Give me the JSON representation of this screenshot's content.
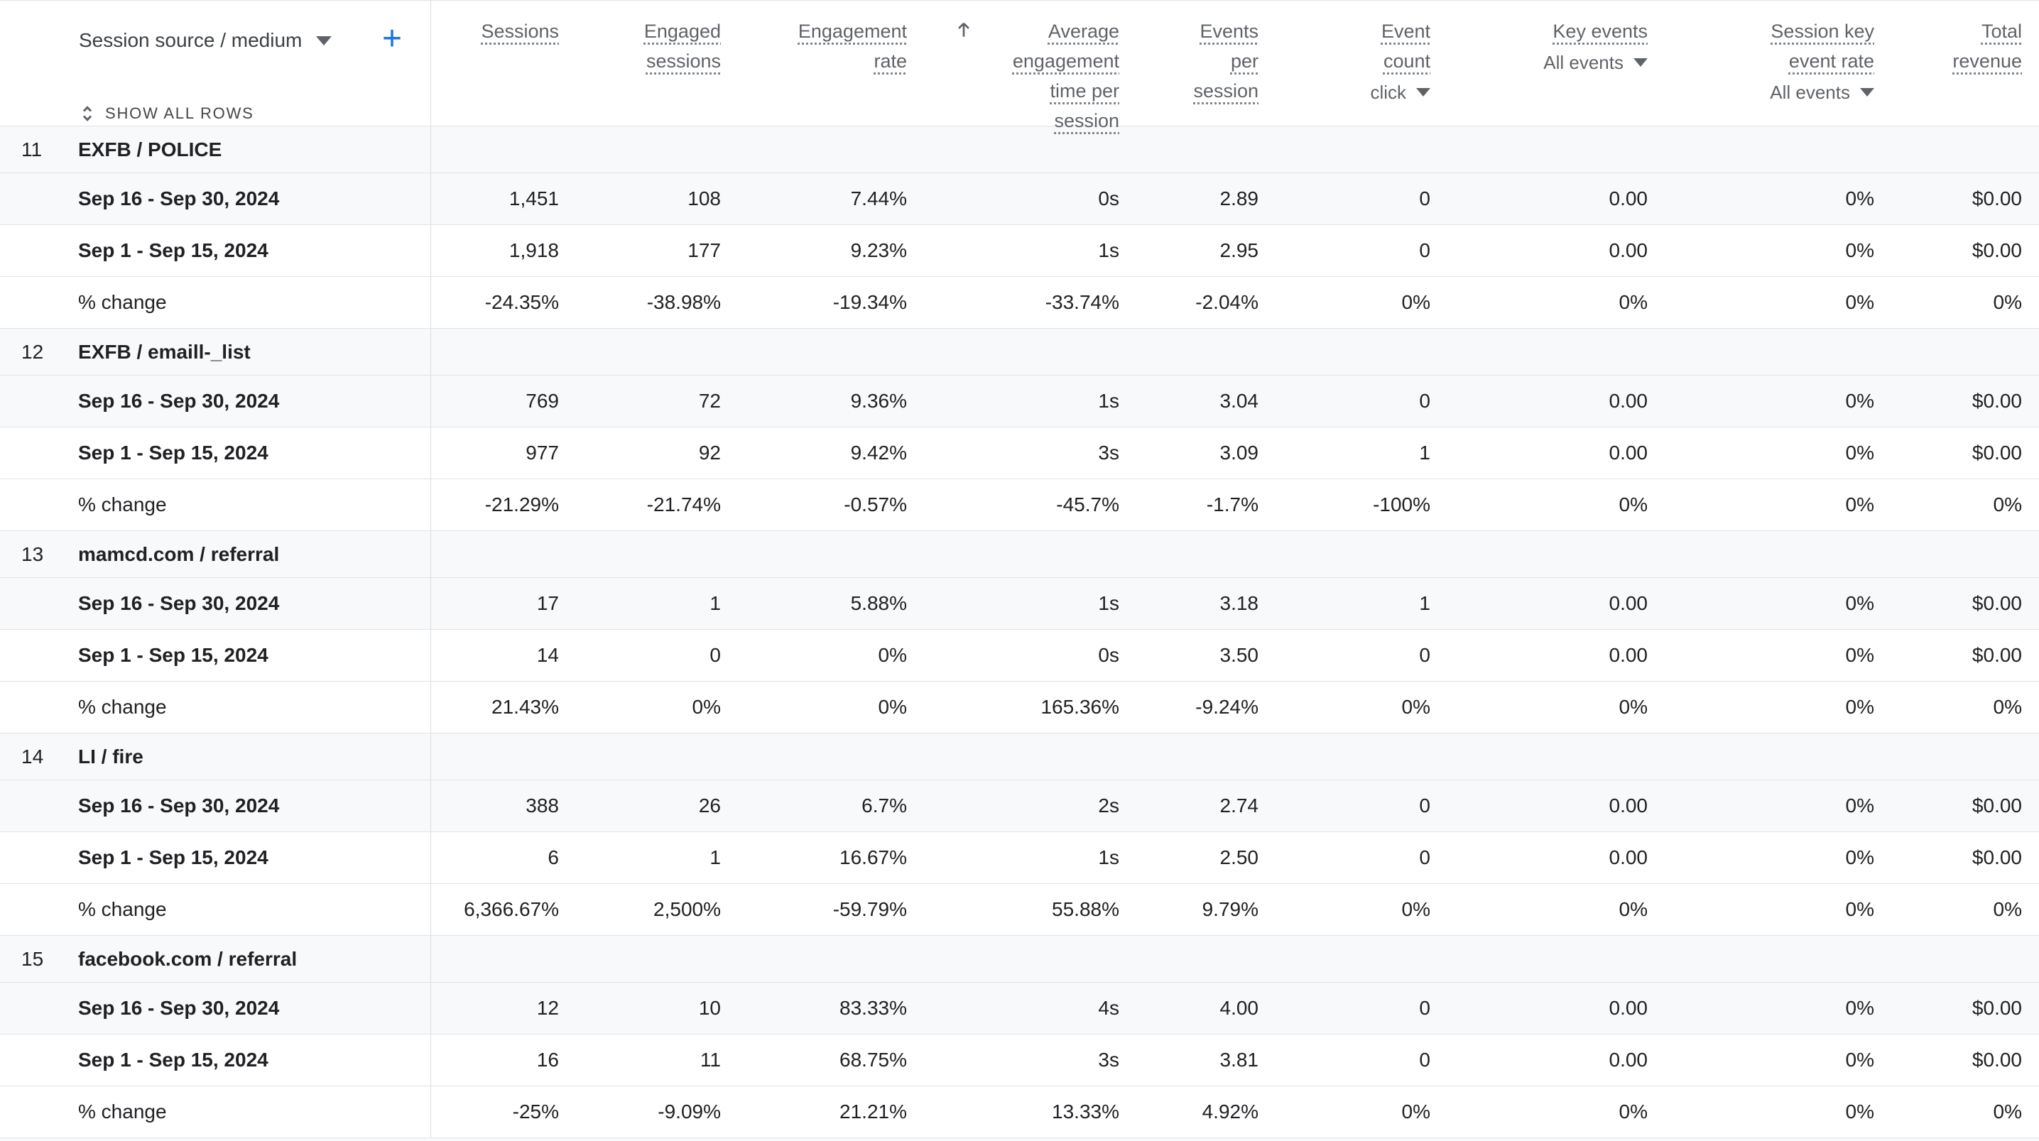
{
  "controls": {
    "dimension_selector_label": "Session source / medium",
    "add_button_label": "+",
    "show_all_rows_label": "SHOW ALL ROWS"
  },
  "table": {
    "columns": [
      {
        "label": "Sessions"
      },
      {
        "label": "Engaged\nsessions"
      },
      {
        "label": "Engagement\nrate"
      },
      {
        "label": "Average\nengagement\ntime per\nsession",
        "sorted": "ascending"
      },
      {
        "label": "Events\nper\nsession"
      },
      {
        "label": "Event\ncount",
        "filter": "click"
      },
      {
        "label": "Key events",
        "filter": "All events"
      },
      {
        "label": "Session key\nevent rate",
        "filter": "All events"
      },
      {
        "label": "Total\nrevenue"
      }
    ],
    "date_range_1": "Sep 16 - Sep 30, 2024",
    "date_range_2": "Sep 1 - Sep 15, 2024",
    "pct_change_label": "% change",
    "groups": [
      {
        "index": "11",
        "dimension": "EXFB / POLICE",
        "rows": [
          {
            "label": "Sep 16 - Sep 30, 2024",
            "values": [
              "1,451",
              "108",
              "7.44%",
              "0s",
              "2.89",
              "0",
              "0.00",
              "0%",
              "$0.00"
            ]
          },
          {
            "label": "Sep 1 - Sep 15, 2024",
            "values": [
              "1,918",
              "177",
              "9.23%",
              "1s",
              "2.95",
              "0",
              "0.00",
              "0%",
              "$0.00"
            ]
          },
          {
            "label": "% change",
            "values": [
              "-24.35%",
              "-38.98%",
              "-19.34%",
              "-33.74%",
              "-2.04%",
              "0%",
              "0%",
              "0%",
              "0%"
            ]
          }
        ]
      },
      {
        "index": "12",
        "dimension": "EXFB / emaill-_list",
        "rows": [
          {
            "label": "Sep 16 - Sep 30, 2024",
            "values": [
              "769",
              "72",
              "9.36%",
              "1s",
              "3.04",
              "0",
              "0.00",
              "0%",
              "$0.00"
            ]
          },
          {
            "label": "Sep 1 - Sep 15, 2024",
            "values": [
              "977",
              "92",
              "9.42%",
              "3s",
              "3.09",
              "1",
              "0.00",
              "0%",
              "$0.00"
            ]
          },
          {
            "label": "% change",
            "values": [
              "-21.29%",
              "-21.74%",
              "-0.57%",
              "-45.7%",
              "-1.7%",
              "-100%",
              "0%",
              "0%",
              "0%"
            ]
          }
        ]
      },
      {
        "index": "13",
        "dimension": "mamcd.com / referral",
        "rows": [
          {
            "label": "Sep 16 - Sep 30, 2024",
            "values": [
              "17",
              "1",
              "5.88%",
              "1s",
              "3.18",
              "1",
              "0.00",
              "0%",
              "$0.00"
            ]
          },
          {
            "label": "Sep 1 - Sep 15, 2024",
            "values": [
              "14",
              "0",
              "0%",
              "0s",
              "3.50",
              "0",
              "0.00",
              "0%",
              "$0.00"
            ]
          },
          {
            "label": "% change",
            "values": [
              "21.43%",
              "0%",
              "0%",
              "165.36%",
              "-9.24%",
              "0%",
              "0%",
              "0%",
              "0%"
            ]
          }
        ]
      },
      {
        "index": "14",
        "dimension": "LI / fire",
        "rows": [
          {
            "label": "Sep 16 - Sep 30, 2024",
            "values": [
              "388",
              "26",
              "6.7%",
              "2s",
              "2.74",
              "0",
              "0.00",
              "0%",
              "$0.00"
            ]
          },
          {
            "label": "Sep 1 - Sep 15, 2024",
            "values": [
              "6",
              "1",
              "16.67%",
              "1s",
              "2.50",
              "0",
              "0.00",
              "0%",
              "$0.00"
            ]
          },
          {
            "label": "% change",
            "values": [
              "6,366.67%",
              "2,500%",
              "-59.79%",
              "55.88%",
              "9.79%",
              "0%",
              "0%",
              "0%",
              "0%"
            ]
          }
        ]
      },
      {
        "index": "15",
        "dimension": "facebook.com / referral",
        "rows": [
          {
            "label": "Sep 16 - Sep 30, 2024",
            "values": [
              "12",
              "10",
              "83.33%",
              "4s",
              "4.00",
              "0",
              "0.00",
              "0%",
              "$0.00"
            ]
          },
          {
            "label": "Sep 1 - Sep 15, 2024",
            "values": [
              "16",
              "11",
              "68.75%",
              "3s",
              "3.81",
              "0",
              "0.00",
              "0%",
              "$0.00"
            ]
          },
          {
            "label": "% change",
            "values": [
              "-25%",
              "-9.09%",
              "21.21%",
              "13.33%",
              "4.92%",
              "0%",
              "0%",
              "0%",
              "0%"
            ]
          }
        ]
      }
    ]
  },
  "colors": {
    "accent": "#1a73e8",
    "header_text": "#5f6368",
    "row_shade": "#f8f9fa",
    "border": "#e2e3e6",
    "text": "#202124"
  }
}
